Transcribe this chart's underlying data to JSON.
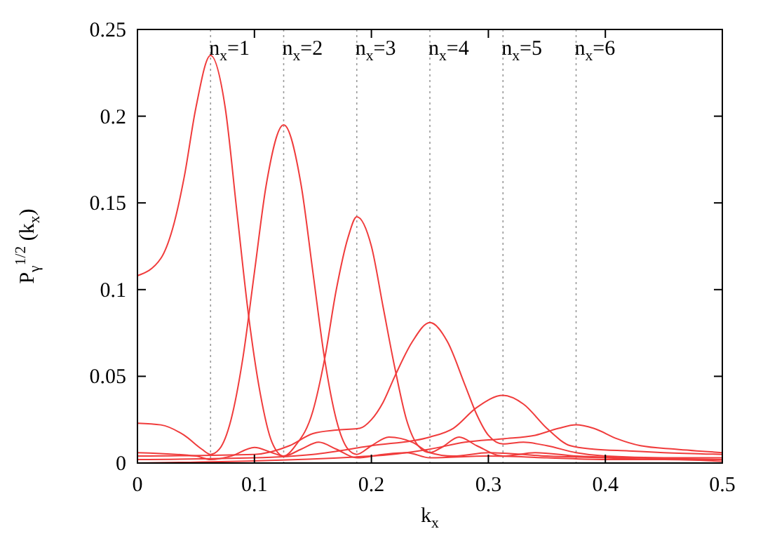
{
  "chart_data": {
    "type": "line",
    "xlabel": "k$_{x}$",
    "ylabel": "P$_{γ}$$^{1/2}$ (k$_{x}$)",
    "xlim": [
      0,
      0.5
    ],
    "ylim": [
      0,
      0.25
    ],
    "xticks": [
      0,
      0.1,
      0.2,
      0.3,
      0.4,
      0.5
    ],
    "yticks": [
      0,
      0.05,
      0.1,
      0.15,
      0.2,
      0.25
    ],
    "grid": false,
    "marker": "none",
    "line_style": "solid",
    "annotations": [
      "n$_{x}$=1",
      "n$_{x}$=2",
      "n$_{x}$=3",
      "n$_{x}$=4",
      "n$_{x}$=5",
      "n$_{x}$=6"
    ],
    "ref_lines": [
      {
        "axis": "x",
        "value": 0.0625,
        "color": "#999999",
        "line_style": "dotted"
      },
      {
        "axis": "x",
        "value": 0.125,
        "color": "#999999",
        "line_style": "dotted"
      },
      {
        "axis": "x",
        "value": 0.1875,
        "color": "#999999",
        "line_style": "dotted"
      },
      {
        "axis": "x",
        "value": 0.25,
        "color": "#999999",
        "line_style": "dotted"
      },
      {
        "axis": "x",
        "value": 0.3125,
        "color": "#999999",
        "line_style": "dotted"
      },
      {
        "axis": "x",
        "value": 0.375,
        "color": "#999999",
        "line_style": "dotted"
      }
    ],
    "series": [
      {
        "color": "#f03c3c",
        "x": [
          0,
          0.02,
          0.03,
          0.04,
          0.05,
          0.0625,
          0.075,
          0.085,
          0.095,
          0.105,
          0.115,
          0.125,
          0.14,
          0.155,
          0.17,
          0.1875,
          0.21,
          0.23,
          0.25,
          0.3,
          0.35,
          0.4,
          0.45,
          0.5
        ],
        "values": [
          0.108,
          0.118,
          0.135,
          0.165,
          0.205,
          0.235,
          0.205,
          0.145,
          0.085,
          0.04,
          0.012,
          0.004,
          0.008,
          0.012,
          0.008,
          0.003,
          0.005,
          0.006,
          0.003,
          0.004,
          0.003,
          0.002,
          0.002,
          0.001
        ]
      },
      {
        "color": "#f03c3c",
        "x": [
          0,
          0.02,
          0.04,
          0.055,
          0.0625,
          0.07,
          0.08,
          0.09,
          0.1,
          0.11,
          0.125,
          0.14,
          0.15,
          0.16,
          0.17,
          0.18,
          0.1875,
          0.2,
          0.215,
          0.235,
          0.25,
          0.27,
          0.3,
          0.35,
          0.4,
          0.45,
          0.5
        ],
        "values": [
          0.023,
          0.022,
          0.016,
          0.008,
          0.005,
          0.008,
          0.025,
          0.06,
          0.11,
          0.16,
          0.195,
          0.16,
          0.11,
          0.06,
          0.025,
          0.008,
          0.005,
          0.01,
          0.015,
          0.012,
          0.006,
          0.004,
          0.006,
          0.004,
          0.003,
          0.002,
          0.002
        ]
      },
      {
        "color": "#f03c3c",
        "x": [
          0,
          0.05,
          0.0625,
          0.08,
          0.1,
          0.115,
          0.125,
          0.135,
          0.15,
          0.16,
          0.17,
          0.18,
          0.1875,
          0.2,
          0.21,
          0.22,
          0.23,
          0.24,
          0.25,
          0.26,
          0.275,
          0.29,
          0.3125,
          0.34,
          0.375,
          0.42,
          0.5
        ],
        "values": [
          0.006,
          0.004,
          0.002,
          0.004,
          0.009,
          0.006,
          0.004,
          0.01,
          0.03,
          0.06,
          0.1,
          0.13,
          0.142,
          0.125,
          0.09,
          0.055,
          0.025,
          0.01,
          0.006,
          0.009,
          0.015,
          0.01,
          0.004,
          0.006,
          0.004,
          0.003,
          0.002
        ]
      },
      {
        "color": "#f03c3c",
        "x": [
          0,
          0.1,
          0.13,
          0.15,
          0.17,
          0.19,
          0.2,
          0.21,
          0.22,
          0.235,
          0.25,
          0.265,
          0.28,
          0.29,
          0.3,
          0.3125,
          0.33,
          0.35,
          0.375,
          0.4,
          0.45,
          0.5
        ],
        "values": [
          0.004,
          0.005,
          0.01,
          0.017,
          0.019,
          0.02,
          0.025,
          0.035,
          0.05,
          0.07,
          0.081,
          0.07,
          0.045,
          0.028,
          0.016,
          0.011,
          0.012,
          0.01,
          0.006,
          0.004,
          0.003,
          0.003
        ]
      },
      {
        "color": "#f03c3c",
        "x": [
          0,
          0.1,
          0.15,
          0.2,
          0.25,
          0.27,
          0.29,
          0.3125,
          0.33,
          0.35,
          0.37,
          0.39,
          0.42,
          0.45,
          0.5
        ],
        "values": [
          0.002,
          0.003,
          0.005,
          0.01,
          0.015,
          0.02,
          0.032,
          0.039,
          0.034,
          0.02,
          0.01,
          0.008,
          0.007,
          0.006,
          0.005
        ]
      },
      {
        "color": "#f03c3c",
        "x": [
          0,
          0.2,
          0.25,
          0.28,
          0.3125,
          0.34,
          0.36,
          0.375,
          0.39,
          0.41,
          0.43,
          0.46,
          0.5
        ],
        "values": [
          0,
          0.004,
          0.008,
          0.012,
          0.014,
          0.016,
          0.02,
          0.022,
          0.02,
          0.014,
          0.01,
          0.008,
          0.006
        ]
      }
    ]
  }
}
